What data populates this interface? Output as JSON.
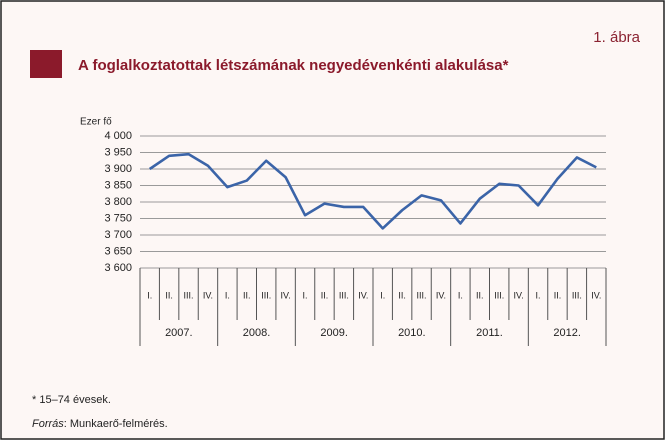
{
  "chart_data": {
    "type": "line",
    "figure_label": "1. ábra",
    "title": "A foglalkoztatottak létszámának negyedévenkénti alakulása*",
    "y_label": "Ezer fő",
    "categories": [
      "I.",
      "II.",
      "III.",
      "IV.",
      "I.",
      "II.",
      "III.",
      "IV.",
      "I.",
      "II.",
      "III.",
      "IV.",
      "I.",
      "II.",
      "III.",
      "IV.",
      "I.",
      "II.",
      "III.",
      "IV.",
      "I.",
      "II.",
      "III.",
      "IV."
    ],
    "groups": [
      "2007.",
      "2008.",
      "2009.",
      "2010.",
      "2011.",
      "2012."
    ],
    "series": [
      {
        "color": "#3b64a8",
        "values": [
          3900,
          3940,
          3945,
          3910,
          3845,
          3865,
          3925,
          3875,
          3760,
          3795,
          3785,
          3785,
          3720,
          3775,
          3820,
          3805,
          3735,
          3810,
          3855,
          3850,
          3790,
          3870,
          3935,
          3905
        ]
      }
    ],
    "ylim": [
      3600,
      4000
    ],
    "yticks": [
      {
        "value": 3600,
        "label": "3 600"
      },
      {
        "value": 3650,
        "label": "3 650"
      },
      {
        "value": 3700,
        "label": "3 700"
      },
      {
        "value": 3750,
        "label": "3 750"
      },
      {
        "value": 3800,
        "label": "3 800"
      },
      {
        "value": 3850,
        "label": "3 850"
      },
      {
        "value": 3900,
        "label": "3 900"
      },
      {
        "value": 3950,
        "label": "3 950"
      },
      {
        "value": 4000,
        "label": "4 000"
      }
    ],
    "grid": true,
    "footnote": "* 15–74 évesek.",
    "source_label": "Forrás",
    "source_text": ": Munkaerő-felmérés."
  }
}
